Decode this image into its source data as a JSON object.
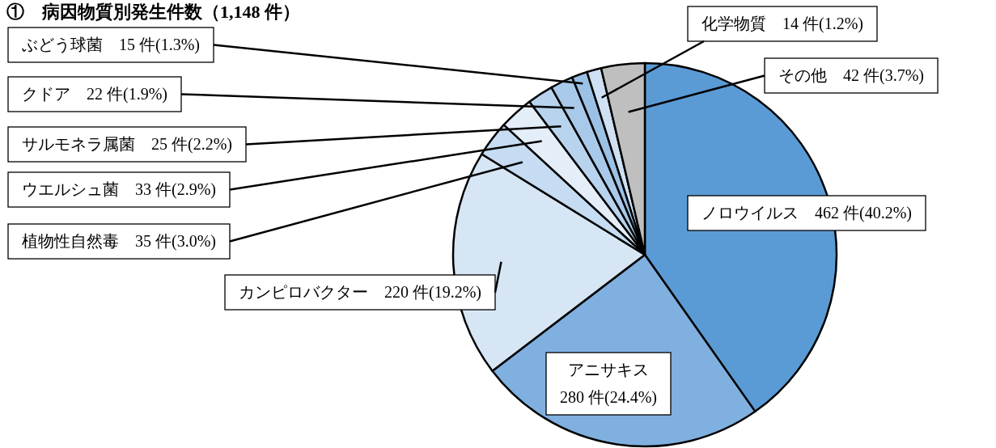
{
  "chart_data": {
    "type": "pie",
    "title": "①　病因物質別発生件数（1,148 件）",
    "categories": [
      "ノロウイルス",
      "アニサキス",
      "カンピロバクター",
      "植物性自然毒",
      "ウエルシュ菌",
      "サルモネラ属菌",
      "クドア",
      "ぶどう球菌",
      "化学物質",
      "その他"
    ],
    "values": [
      462,
      280,
      220,
      35,
      33,
      25,
      22,
      15,
      14,
      42
    ],
    "colors": [
      "#5b9bd5",
      "#7fb0e0",
      "#d6e6f5",
      "#c5dcf2",
      "#e4eef9",
      "#b8d3ee",
      "#a9c9ea",
      "#9cc1e6",
      "#cfe0f3",
      "#bfbfbf"
    ],
    "value_labels": [
      "462 件(40.2%)",
      "280 件(24.4%)",
      "220 件(19.2%)",
      "35 件(3.0%)",
      "33 件(2.9%)",
      "25 件(2.2%)",
      "22 件(1.9%)",
      "15 件(1.3%)",
      "14 件(1.2%)",
      "42 件(3.7%)"
    ]
  }
}
